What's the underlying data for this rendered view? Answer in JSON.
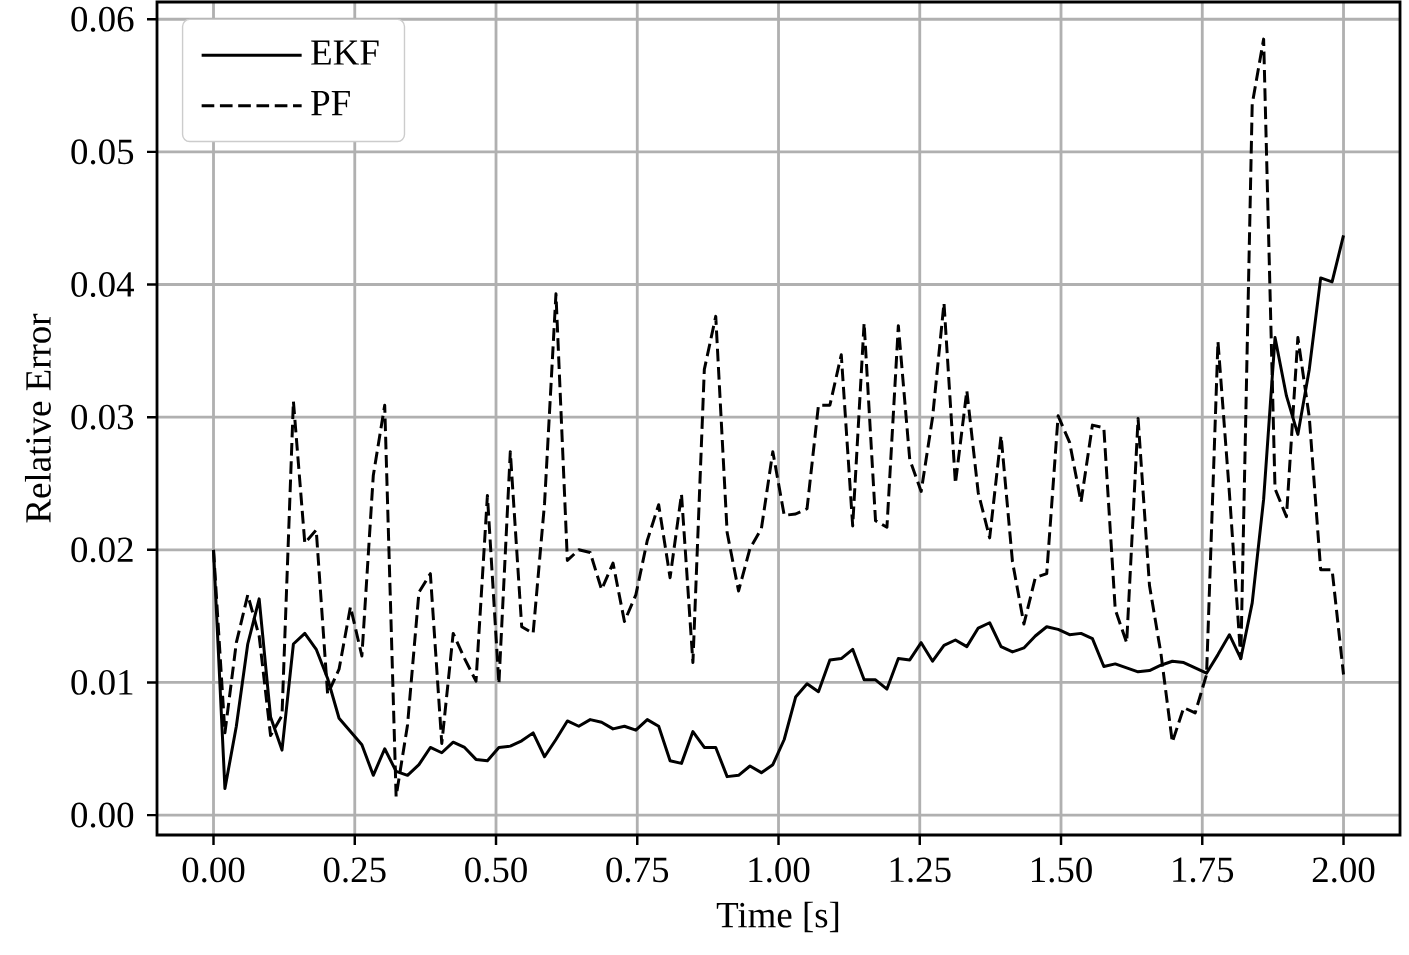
{
  "chart_data": {
    "type": "line",
    "xlabel": "Time [s]",
    "ylabel": "Relative Error",
    "x": [
      0,
      0.0202,
      0.0404,
      0.0606,
      0.0808,
      0.101,
      0.1212,
      0.1414,
      0.1616,
      0.1818,
      0.202,
      0.2222,
      0.2424,
      0.2626,
      0.2828,
      0.303,
      0.3232,
      0.3434,
      0.3636,
      0.3838,
      0.404,
      0.4242,
      0.4444,
      0.4646,
      0.4848,
      0.5051,
      0.5253,
      0.5455,
      0.5657,
      0.5859,
      0.6061,
      0.6263,
      0.6465,
      0.6667,
      0.6869,
      0.7071,
      0.7273,
      0.7475,
      0.7677,
      0.7879,
      0.8081,
      0.8283,
      0.8485,
      0.8687,
      0.8889,
      0.9091,
      0.9293,
      0.9495,
      0.9697,
      0.9899,
      1.0101,
      1.0303,
      1.0505,
      1.0707,
      1.0909,
      1.1111,
      1.1313,
      1.1515,
      1.1717,
      1.1919,
      1.2121,
      1.2323,
      1.2525,
      1.2727,
      1.2929,
      1.3131,
      1.3333,
      1.3535,
      1.3737,
      1.3939,
      1.4141,
      1.4343,
      1.4545,
      1.4747,
      1.4949,
      1.5152,
      1.5354,
      1.5556,
      1.5758,
      1.596,
      1.6162,
      1.6364,
      1.6566,
      1.6768,
      1.697,
      1.7172,
      1.7374,
      1.7576,
      1.7778,
      1.798,
      1.8182,
      1.8384,
      1.8586,
      1.8788,
      1.899,
      1.9192,
      1.9394,
      1.9596,
      1.9798,
      2
    ],
    "series": [
      {
        "name": "EKF",
        "color": "#000000",
        "line_style": "solid",
        "values": [
          0.02,
          0.002,
          0.0067,
          0.0129,
          0.0163,
          0.0074,
          0.0049,
          0.0129,
          0.0137,
          0.0125,
          0.0103,
          0.0073,
          0.0063,
          0.0053,
          0.003,
          0.005,
          0.0033,
          0.003,
          0.0038,
          0.0051,
          0.0047,
          0.0055,
          0.0051,
          0.0042,
          0.0041,
          0.0051,
          0.0052,
          0.0056,
          0.0062,
          0.0044,
          0.0057,
          0.0071,
          0.0067,
          0.0072,
          0.007,
          0.0065,
          0.0067,
          0.0064,
          0.0072,
          0.0067,
          0.0041,
          0.0039,
          0.0063,
          0.0051,
          0.0051,
          0.0029,
          0.003,
          0.0037,
          0.0032,
          0.0038,
          0.0057,
          0.0089,
          0.0099,
          0.0093,
          0.0117,
          0.0118,
          0.0125,
          0.0102,
          0.0102,
          0.0095,
          0.0118,
          0.0117,
          0.013,
          0.0116,
          0.0128,
          0.0132,
          0.0127,
          0.0141,
          0.0145,
          0.0127,
          0.0123,
          0.0126,
          0.0135,
          0.0142,
          0.014,
          0.0136,
          0.0137,
          0.0133,
          0.0112,
          0.0114,
          0.0111,
          0.0108,
          0.0109,
          0.0113,
          0.0116,
          0.0115,
          0.0111,
          0.0107,
          0.0121,
          0.0136,
          0.0118,
          0.016,
          0.0238,
          0.036,
          0.0316,
          0.0287,
          0.0336,
          0.0405,
          0.0402,
          0.0437
        ]
      },
      {
        "name": "PF",
        "color": "#000000",
        "line_style": "dashed",
        "values": [
          0.02,
          0.0062,
          0.013,
          0.0166,
          0.0135,
          0.006,
          0.0075,
          0.0312,
          0.0205,
          0.0215,
          0.0091,
          0.011,
          0.0157,
          0.012,
          0.0256,
          0.0309,
          0.0014,
          0.0068,
          0.0168,
          0.0182,
          0.0054,
          0.0137,
          0.0118,
          0.0101,
          0.0241,
          0.0099,
          0.0274,
          0.0142,
          0.0137,
          0.0235,
          0.0393,
          0.0192,
          0.02,
          0.0198,
          0.017,
          0.019,
          0.0146,
          0.0166,
          0.0207,
          0.0234,
          0.0179,
          0.0242,
          0.0115,
          0.0336,
          0.0376,
          0.0213,
          0.0169,
          0.0201,
          0.0216,
          0.0274,
          0.0226,
          0.0227,
          0.0231,
          0.0309,
          0.0309,
          0.0347,
          0.0218,
          0.0371,
          0.0222,
          0.0217,
          0.0369,
          0.0268,
          0.0244,
          0.03,
          0.0386,
          0.025,
          0.032,
          0.0243,
          0.0209,
          0.0286,
          0.0191,
          0.0144,
          0.0179,
          0.0182,
          0.0301,
          0.0281,
          0.0236,
          0.0294,
          0.0292,
          0.0155,
          0.013,
          0.0299,
          0.0173,
          0.0122,
          0.0055,
          0.0081,
          0.0077,
          0.0106,
          0.0357,
          0.0243,
          0.0118,
          0.0536,
          0.0585,
          0.0246,
          0.0225,
          0.036,
          0.03,
          0.0185,
          0.0185,
          0.0106
        ]
      }
    ],
    "xlim": [
      -0.1,
      2.1
    ],
    "xticks": [
      {
        "value": 0,
        "label": "0.00"
      },
      {
        "value": 0.25,
        "label": "0.25"
      },
      {
        "value": 0.5,
        "label": "0.50"
      },
      {
        "value": 0.75,
        "label": "0.75"
      },
      {
        "value": 1,
        "label": "1.00"
      },
      {
        "value": 1.25,
        "label": "1.25"
      },
      {
        "value": 1.5,
        "label": "1.50"
      },
      {
        "value": 1.75,
        "label": "1.75"
      },
      {
        "value": 2,
        "label": "2.00"
      }
    ],
    "ylim": [
      -0.0015,
      0.0613
    ],
    "yticks": [
      {
        "value": 0,
        "label": "0.00"
      },
      {
        "value": 0.01,
        "label": "0.01"
      },
      {
        "value": 0.02,
        "label": "0.02"
      },
      {
        "value": 0.03,
        "label": "0.03"
      },
      {
        "value": 0.04,
        "label": "0.04"
      },
      {
        "value": 0.05,
        "label": "0.05"
      },
      {
        "value": 0.06,
        "label": "0.06"
      }
    ],
    "grid": true,
    "legend": "top left",
    "marker": "none"
  }
}
